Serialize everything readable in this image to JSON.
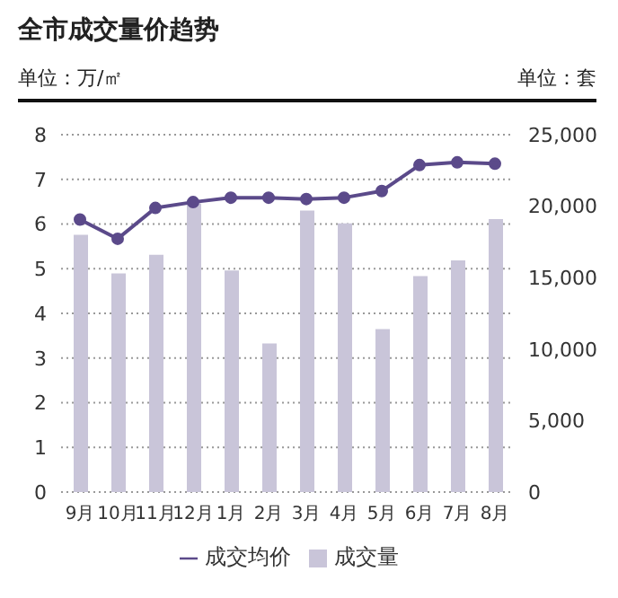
{
  "chart_data": {
    "type": "bar",
    "title": "全市成交量价趋势",
    "ylabel": "单位：万/㎡",
    "y2label": "单位：套",
    "categories": [
      "9月",
      "10月",
      "11月",
      "12月",
      "1月",
      "2月",
      "3月",
      "4月",
      "5月",
      "6月",
      "7月",
      "8月"
    ],
    "series": [
      {
        "name": "成交均价",
        "type": "line",
        "color": "#5b4a8a",
        "values": [
          6.1,
          5.67,
          6.36,
          6.49,
          6.59,
          6.59,
          6.56,
          6.59,
          6.74,
          7.32,
          7.38,
          7.35
        ]
      },
      {
        "name": "成交量",
        "axis": "y2",
        "color": "#c9c5d9",
        "values": [
          18000,
          15300,
          16600,
          20200,
          15500,
          10400,
          19700,
          18800,
          11400,
          15100,
          16200,
          19100
        ]
      }
    ],
    "ylim": [
      0,
      8
    ],
    "yticks": [
      0,
      1,
      2,
      3,
      4,
      5,
      6,
      7,
      8
    ],
    "y2lim": [
      0,
      25000
    ],
    "y2ticks": [
      0,
      {
        "value": 5000,
        "label": "5,000"
      },
      {
        "value": 10000,
        "label": "10,000"
      },
      {
        "value": 15000,
        "label": "15,000"
      },
      {
        "value": 20000,
        "label": "20,000"
      },
      {
        "value": 25000,
        "label": "25,000"
      }
    ],
    "grid": "y",
    "legend": "bottom",
    "marker": "circle"
  }
}
